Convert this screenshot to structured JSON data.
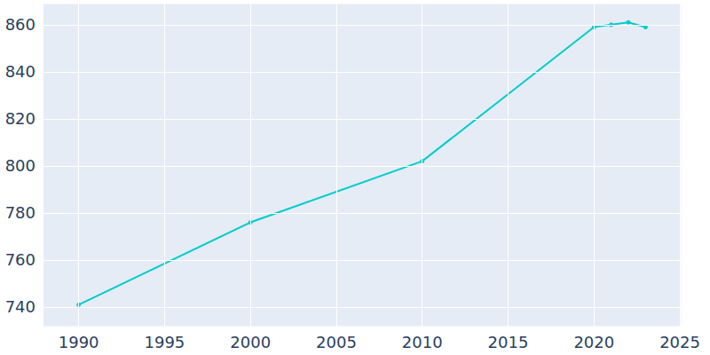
{
  "chart_data": {
    "type": "line",
    "x": [
      1990,
      2000,
      2010,
      2020,
      2021,
      2022,
      2023
    ],
    "values": [
      741,
      776,
      802,
      859,
      860,
      861,
      859
    ],
    "color": "#00cccc",
    "marker": "circle",
    "xlim": [
      1987.9,
      2025.1
    ],
    "xticks": [
      1990,
      1995,
      2000,
      2005,
      2010,
      2015,
      2020,
      2025
    ],
    "ylim": [
      731.7,
      869
    ],
    "yticks": [
      740,
      760,
      780,
      800,
      820,
      840,
      860
    ],
    "grid": true
  }
}
